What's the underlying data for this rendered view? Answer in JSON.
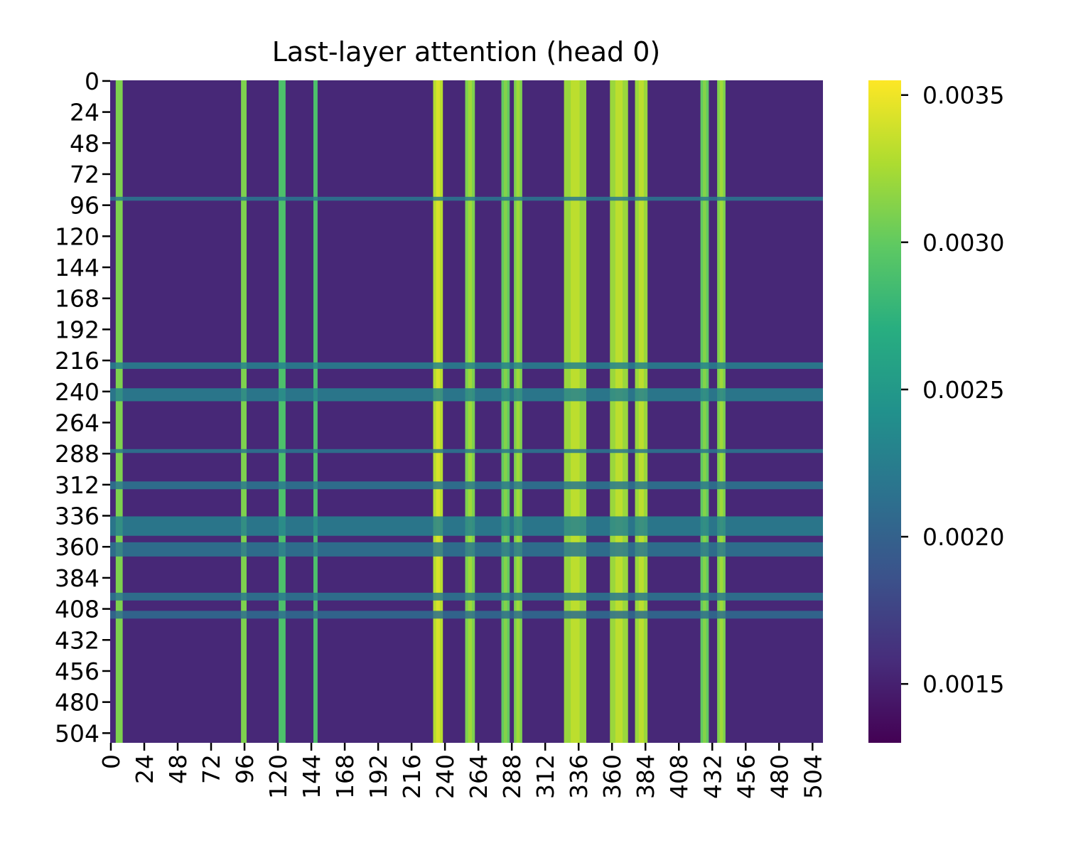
{
  "chart_data": {
    "type": "heatmap",
    "title": "Last-layer attention (head 0)",
    "xlabel": "",
    "ylabel": "",
    "n_rows": 512,
    "n_cols": 512,
    "x_tick_labels": [
      "0",
      "24",
      "48",
      "72",
      "96",
      "120",
      "144",
      "168",
      "192",
      "216",
      "240",
      "264",
      "288",
      "312",
      "336",
      "360",
      "384",
      "408",
      "432",
      "456",
      "480",
      "504"
    ],
    "y_tick_labels": [
      "0",
      "24",
      "48",
      "72",
      "96",
      "120",
      "144",
      "168",
      "192",
      "216",
      "240",
      "264",
      "288",
      "312",
      "336",
      "360",
      "384",
      "408",
      "432",
      "456",
      "480",
      "504"
    ],
    "colormap": "viridis",
    "colorbar": {
      "range": [
        0.0013,
        0.00355
      ],
      "tick_values": [
        0.0015,
        0.002,
        0.0025,
        0.003,
        0.0035
      ],
      "tick_labels": [
        "0.0015",
        "0.0020",
        "0.0025",
        "0.0030",
        "0.0035"
      ]
    },
    "baseline_value": 0.00155,
    "high_attention_columns": [
      {
        "start": 4,
        "end": 9,
        "value": 0.0031
      },
      {
        "start": 94,
        "end": 98,
        "value": 0.0031
      },
      {
        "start": 121,
        "end": 126,
        "value": 0.0029
      },
      {
        "start": 146,
        "end": 149,
        "value": 0.0029
      },
      {
        "start": 232,
        "end": 239,
        "value": 0.0033
      },
      {
        "start": 255,
        "end": 262,
        "value": 0.0031
      },
      {
        "start": 281,
        "end": 287,
        "value": 0.003
      },
      {
        "start": 290,
        "end": 296,
        "value": 0.0031
      },
      {
        "start": 326,
        "end": 342,
        "value": 0.0032
      },
      {
        "start": 359,
        "end": 372,
        "value": 0.0032
      },
      {
        "start": 377,
        "end": 386,
        "value": 0.0032
      },
      {
        "start": 424,
        "end": 430,
        "value": 0.003
      },
      {
        "start": 436,
        "end": 442,
        "value": 0.0031
      }
    ],
    "teal_rows": [
      {
        "start": 90,
        "end": 93,
        "value": 0.0022
      },
      {
        "start": 218,
        "end": 223,
        "value": 0.0023
      },
      {
        "start": 238,
        "end": 248,
        "value": 0.0023
      },
      {
        "start": 285,
        "end": 288,
        "value": 0.0022
      },
      {
        "start": 310,
        "end": 316,
        "value": 0.0022
      },
      {
        "start": 337,
        "end": 352,
        "value": 0.0023
      },
      {
        "start": 357,
        "end": 368,
        "value": 0.0022
      },
      {
        "start": 396,
        "end": 402,
        "value": 0.0022
      },
      {
        "start": 410,
        "end": 416,
        "value": 0.0021
      }
    ],
    "grid": false
  }
}
